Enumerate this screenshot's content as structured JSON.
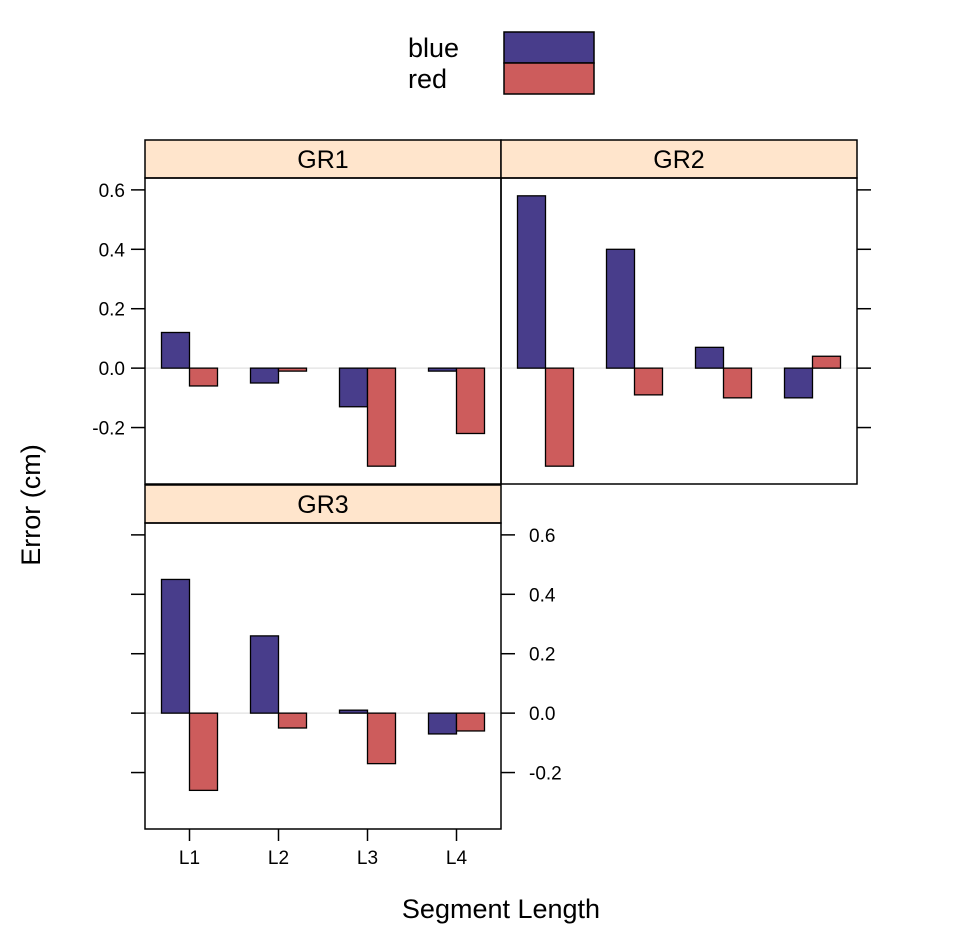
{
  "chart_data": {
    "type": "bar",
    "layout": "lattice-2x2",
    "categories": [
      "L1",
      "L2",
      "L3",
      "L4"
    ],
    "xlabel": "Segment Length",
    "ylabel": "Error (cm)",
    "ylim": [
      -0.39,
      0.64
    ],
    "yticks": [
      -0.2,
      0.0,
      0.2,
      0.4,
      0.6
    ],
    "ytick_labels": [
      "-0.2",
      "0.0",
      "0.2",
      "0.4",
      "0.6"
    ],
    "reference_line": 0,
    "legend": {
      "placement": "top",
      "entries": [
        {
          "label": "blue",
          "color": "#483D8B"
        },
        {
          "label": "red",
          "color": "#CD5C5C"
        }
      ]
    },
    "strip_color": "#FFE5CC",
    "panels": [
      {
        "title": "GR1",
        "series": [
          {
            "name": "blue",
            "values": [
              0.12,
              -0.05,
              -0.13,
              -0.01
            ]
          },
          {
            "name": "red",
            "values": [
              -0.06,
              -0.01,
              -0.33,
              -0.22
            ]
          }
        ]
      },
      {
        "title": "GR2",
        "series": [
          {
            "name": "blue",
            "values": [
              0.58,
              0.4,
              0.07,
              -0.1
            ]
          },
          {
            "name": "red",
            "values": [
              -0.33,
              -0.09,
              -0.1,
              0.04
            ]
          }
        ]
      },
      {
        "title": "GR3",
        "series": [
          {
            "name": "blue",
            "values": [
              0.45,
              0.26,
              0.01,
              -0.07
            ]
          },
          {
            "name": "red",
            "values": [
              -0.26,
              -0.05,
              -0.17,
              -0.06
            ]
          }
        ]
      }
    ]
  }
}
